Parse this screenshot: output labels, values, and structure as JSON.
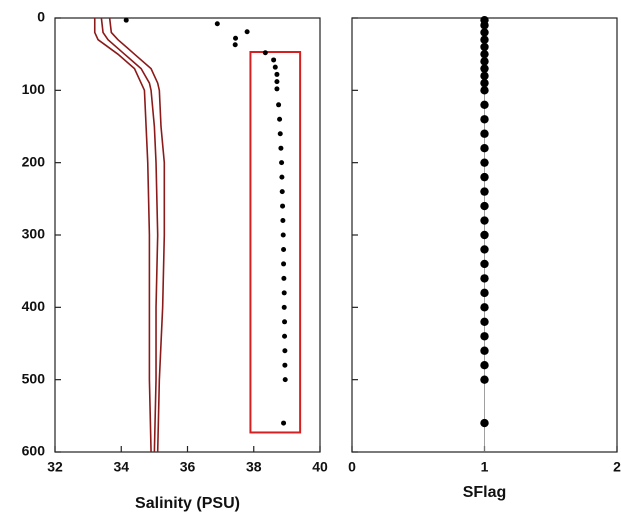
{
  "chart_data": [
    {
      "type": "scatter",
      "xlabel": "Salinity (PSU)",
      "xlim": [
        32,
        40
      ],
      "xticks": [
        32,
        34,
        36,
        38,
        40
      ],
      "ylim": [
        0,
        600
      ],
      "yticks": [
        0,
        100,
        200,
        300,
        400,
        500,
        600
      ],
      "y_inverted": true,
      "depth": [
        0,
        20,
        30,
        50,
        70,
        90,
        100,
        150,
        200,
        300,
        400,
        500,
        600
      ],
      "series": [
        {
          "color": "#8b1a1a",
          "values": [
            33.2,
            33.2,
            33.3,
            33.9,
            34.4,
            34.6,
            34.7,
            34.75,
            34.8,
            34.85,
            34.85,
            34.85,
            34.9
          ]
        },
        {
          "color": "#8b1a1a",
          "values": [
            33.4,
            33.45,
            33.6,
            34.1,
            34.6,
            34.85,
            34.9,
            35.0,
            35.05,
            35.1,
            35.05,
            35.05,
            35.0
          ]
        },
        {
          "color": "#8b1a1a",
          "values": [
            33.65,
            33.7,
            33.9,
            34.4,
            34.9,
            35.1,
            35.15,
            35.2,
            35.3,
            35.3,
            35.25,
            35.15,
            35.1
          ]
        }
      ],
      "points": {
        "color": "#000000",
        "x": [
          34.15,
          36.9,
          37.8,
          37.45,
          37.44,
          38.35,
          38.6,
          38.65,
          38.7,
          38.7,
          38.7,
          38.75,
          38.78,
          38.8,
          38.82,
          38.84,
          38.85,
          38.86,
          38.87,
          38.88,
          38.89,
          38.9,
          38.9,
          38.91,
          38.92,
          38.92,
          38.93,
          38.93,
          38.94,
          38.94,
          38.95,
          38.9
        ],
        "y": [
          3,
          8,
          19,
          28,
          37,
          48,
          58,
          68,
          78,
          88,
          98,
          120,
          140,
          160,
          180,
          200,
          220,
          240,
          260,
          280,
          300,
          320,
          340,
          360,
          380,
          400,
          420,
          440,
          460,
          480,
          500,
          560
        ]
      },
      "highlight": {
        "color": "#d42020",
        "x": [
          37.9,
          39.4
        ],
        "y": [
          47,
          573
        ]
      }
    },
    {
      "type": "scatter",
      "xlabel": "SFlag",
      "xlim": [
        0,
        2
      ],
      "xticks": [
        0,
        1,
        2
      ],
      "ylim": [
        0,
        600
      ],
      "yticks": [
        0,
        100,
        200,
        300,
        400,
        500,
        600
      ],
      "y_inverted": true,
      "show_ytick_labels": false,
      "reference_x": 1,
      "points": {
        "color": "#000000",
        "x": [
          1,
          1,
          1,
          1,
          1,
          1,
          1,
          1,
          1,
          1,
          1,
          1,
          1,
          1,
          1,
          1,
          1,
          1,
          1,
          1,
          1,
          1,
          1,
          1,
          1,
          1,
          1,
          1,
          1,
          1,
          1,
          1
        ],
        "y": [
          3,
          10,
          20,
          30,
          40,
          50,
          60,
          70,
          80,
          90,
          100,
          120,
          140,
          160,
          180,
          200,
          220,
          240,
          260,
          280,
          300,
          320,
          340,
          360,
          380,
          400,
          420,
          440,
          460,
          480,
          500,
          560
        ]
      }
    }
  ]
}
